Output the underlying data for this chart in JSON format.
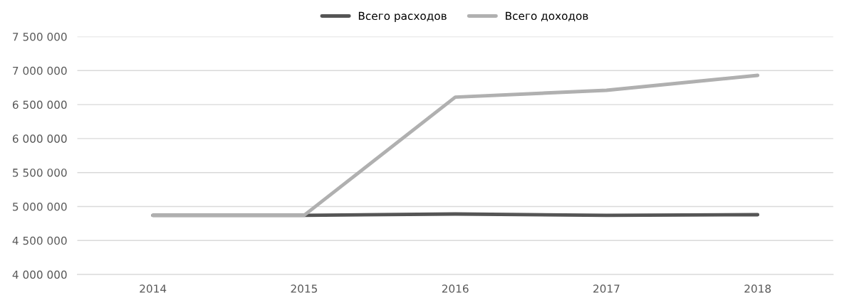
{
  "chart_data": {
    "type": "line",
    "categories": [
      "2014",
      "2015",
      "2016",
      "2017",
      "2018"
    ],
    "series": [
      {
        "name": "Всего расходов",
        "color": "#555555",
        "values": [
          4870000,
          4870000,
          4890000,
          4870000,
          4880000
        ]
      },
      {
        "name": "Всего доходов",
        "color": "#b0b0b0",
        "values": [
          4870000,
          4870000,
          6610000,
          6710000,
          6930000
        ]
      }
    ],
    "ylim": [
      4000000,
      7500000
    ],
    "yticks": [
      {
        "value": 4000000,
        "label": "4 000 000"
      },
      {
        "value": 4500000,
        "label": "4 500 000"
      },
      {
        "value": 5000000,
        "label": "5 000 000"
      },
      {
        "value": 5500000,
        "label": "5 500 000"
      },
      {
        "value": 6000000,
        "label": "6 000 000"
      },
      {
        "value": 6500000,
        "label": "6 500 000"
      },
      {
        "value": 7000000,
        "label": "7 000 000"
      },
      {
        "value": 7500000,
        "label": "7 500 000"
      }
    ],
    "grid": "y",
    "legend": "top",
    "marker": "none",
    "line_style": "solid"
  }
}
